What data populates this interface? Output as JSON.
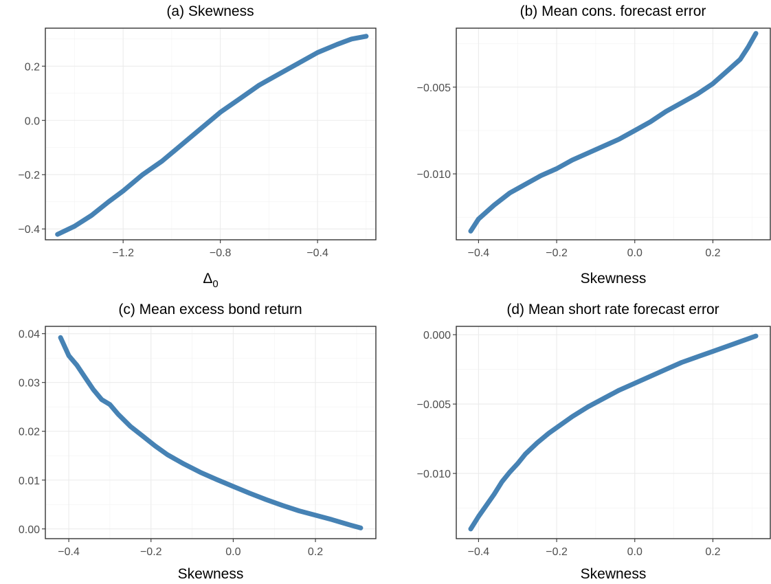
{
  "colors": {
    "line": "#4682B4"
  },
  "chart_data": [
    {
      "type": "line",
      "title": "(a) Skewness",
      "xlabel": "Δ",
      "xlabel_sub": "0",
      "ylabel": "",
      "xlim": [
        -1.52,
        -0.16
      ],
      "ylim": [
        -0.44,
        0.34
      ],
      "xticks": [
        -1.2,
        -0.8,
        -0.4
      ],
      "xtick_labels": [
        "−1.2",
        "−0.8",
        "−0.4"
      ],
      "yticks": [
        -0.4,
        -0.2,
        0.0,
        0.2
      ],
      "ytick_labels": [
        "−0.4",
        "−0.2",
        "0.0",
        "0.2"
      ],
      "grid": true,
      "series": [
        {
          "x": [
            -1.47,
            -1.4,
            -1.33,
            -1.26,
            -1.2,
            -1.12,
            -1.04,
            -0.96,
            -0.88,
            -0.8,
            -0.72,
            -0.64,
            -0.56,
            -0.48,
            -0.4,
            -0.32,
            -0.26,
            -0.2
          ],
          "values": [
            -0.42,
            -0.39,
            -0.35,
            -0.3,
            -0.26,
            -0.2,
            -0.15,
            -0.09,
            -0.03,
            0.03,
            0.08,
            0.13,
            0.17,
            0.21,
            0.25,
            0.28,
            0.3,
            0.31
          ]
        }
      ]
    },
    {
      "type": "line",
      "title": "(b) Mean cons. forecast error",
      "xlabel": "Skewness",
      "ylabel": "",
      "xlim": [
        -0.457,
        0.347
      ],
      "ylim": [
        -0.0138,
        -0.0016
      ],
      "xticks": [
        -0.4,
        -0.2,
        0.0,
        0.2
      ],
      "xtick_labels": [
        "−0.4",
        "−0.2",
        "0.0",
        "0.2"
      ],
      "yticks": [
        -0.01,
        -0.005
      ],
      "ytick_labels": [
        "−0.010",
        "−0.005"
      ],
      "grid": true,
      "series": [
        {
          "x": [
            -0.42,
            -0.4,
            -0.36,
            -0.32,
            -0.28,
            -0.24,
            -0.2,
            -0.16,
            -0.12,
            -0.08,
            -0.04,
            0.0,
            0.04,
            0.08,
            0.12,
            0.16,
            0.2,
            0.24,
            0.27,
            0.29,
            0.31
          ],
          "values": [
            -0.0133,
            -0.0126,
            -0.0118,
            -0.0111,
            -0.0106,
            -0.0101,
            -0.0097,
            -0.0092,
            -0.0088,
            -0.0084,
            -0.008,
            -0.0075,
            -0.007,
            -0.0064,
            -0.0059,
            -0.0054,
            -0.0048,
            -0.004,
            -0.0034,
            -0.0027,
            -0.0019
          ]
        }
      ]
    },
    {
      "type": "line",
      "title": "(c) Mean excess bond return",
      "xlabel": "Skewness",
      "ylabel": "",
      "xlim": [
        -0.457,
        0.347
      ],
      "ylim": [
        -0.002,
        0.0415
      ],
      "xticks": [
        -0.4,
        -0.2,
        0.0,
        0.2
      ],
      "xtick_labels": [
        "−0.4",
        "−0.2",
        "0.0",
        "0.2"
      ],
      "yticks": [
        0.0,
        0.01,
        0.02,
        0.03,
        0.04
      ],
      "ytick_labels": [
        "0.00",
        "0.01",
        "0.02",
        "0.03",
        "0.04"
      ],
      "grid": true,
      "series": [
        {
          "x": [
            -0.42,
            -0.4,
            -0.38,
            -0.36,
            -0.34,
            -0.32,
            -0.3,
            -0.28,
            -0.25,
            -0.22,
            -0.19,
            -0.16,
            -0.12,
            -0.08,
            -0.04,
            0.0,
            0.04,
            0.08,
            0.12,
            0.16,
            0.2,
            0.24,
            0.28,
            0.31
          ],
          "values": [
            0.0392,
            0.0355,
            0.0335,
            0.031,
            0.0285,
            0.0265,
            0.0255,
            0.0235,
            0.021,
            0.019,
            0.017,
            0.0152,
            0.0133,
            0.0116,
            0.0101,
            0.0087,
            0.0073,
            0.006,
            0.0048,
            0.0037,
            0.0028,
            0.0019,
            0.0009,
            0.0002
          ]
        }
      ]
    },
    {
      "type": "line",
      "title": "(d) Mean short rate forecast error",
      "xlabel": "Skewness",
      "ylabel": "",
      "xlim": [
        -0.457,
        0.347
      ],
      "ylim": [
        -0.0147,
        0.0006
      ],
      "xticks": [
        -0.4,
        -0.2,
        0.0,
        0.2
      ],
      "xtick_labels": [
        "−0.4",
        "−0.2",
        "0.0",
        "0.2"
      ],
      "yticks": [
        -0.01,
        -0.005,
        0.0
      ],
      "ytick_labels": [
        "−0.010",
        "−0.005",
        "0.000"
      ],
      "grid": true,
      "series": [
        {
          "x": [
            -0.42,
            -0.4,
            -0.38,
            -0.36,
            -0.34,
            -0.32,
            -0.3,
            -0.28,
            -0.25,
            -0.22,
            -0.19,
            -0.16,
            -0.12,
            -0.08,
            -0.04,
            0.0,
            0.04,
            0.08,
            0.12,
            0.16,
            0.2,
            0.24,
            0.28,
            0.31
          ],
          "values": [
            -0.014,
            -0.0131,
            -0.0123,
            -0.0115,
            -0.0106,
            -0.0099,
            -0.0093,
            -0.0086,
            -0.0078,
            -0.0071,
            -0.0065,
            -0.0059,
            -0.0052,
            -0.0046,
            -0.004,
            -0.0035,
            -0.003,
            -0.0025,
            -0.002,
            -0.0016,
            -0.0012,
            -0.0008,
            -0.0004,
            -0.0001
          ]
        }
      ]
    }
  ]
}
